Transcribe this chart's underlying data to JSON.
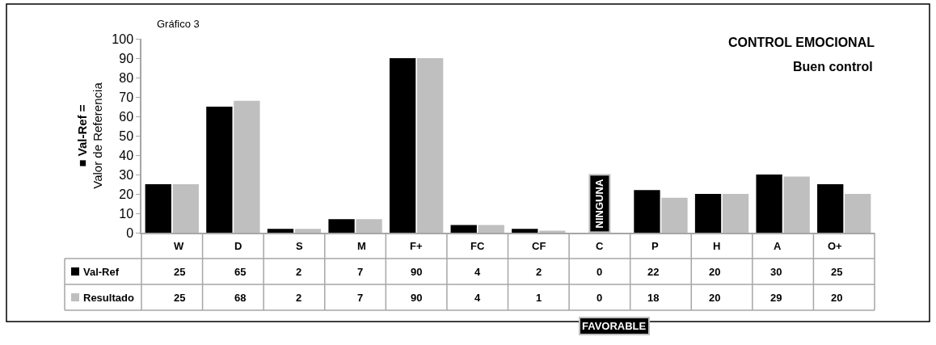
{
  "chart_data": {
    "type": "bar",
    "title": "CONTROL EMOCIONAL",
    "subtitle": "Buen control",
    "ylabel": "■ Val-Ref =\nValor de Referencia",
    "categories": [
      "W",
      "D",
      "S",
      "M",
      "F+",
      "FC",
      "CF",
      "C",
      "P",
      "H",
      "A",
      "O+"
    ],
    "series": [
      {
        "name": "Val-Ref",
        "color": "#000000",
        "values": [
          25,
          65,
          2,
          7,
          90,
          4,
          2,
          0,
          22,
          20,
          30,
          25
        ]
      },
      {
        "name": "Resultado",
        "color": "#bfbfbf",
        "values": [
          25,
          68,
          2,
          7,
          90,
          4,
          1,
          0,
          18,
          20,
          29,
          20
        ]
      }
    ],
    "ylim": [
      0,
      100
    ],
    "yticks": [
      0,
      10,
      20,
      30,
      40,
      50,
      60,
      70,
      80,
      90,
      100
    ],
    "legend": "bottom left",
    "data_labels": true,
    "annotations": [
      "Gráfico 3",
      {
        "text": "NINGUNA",
        "x": "C",
        "y": 0
      },
      "FAVORABLE"
    ]
  }
}
